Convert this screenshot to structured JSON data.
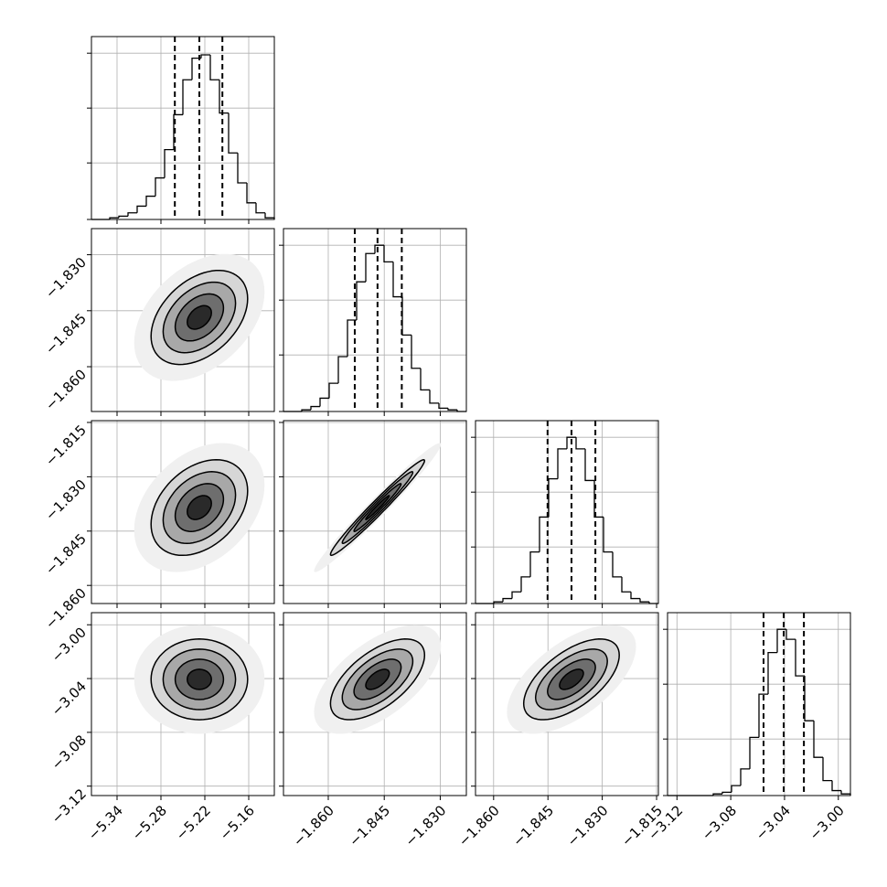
{
  "chart_data": {
    "type": "corner",
    "grid": true,
    "levels": [
      0.5,
      1,
      1.5,
      2
    ],
    "hist_ylim": [
      0,
      110
    ],
    "hist_yticks": [
      0,
      34,
      67,
      100
    ],
    "parameters": [
      {
        "lim": [
          -5.375,
          -5.125
        ],
        "ticks": [
          {
            "value": -5.34,
            "label": "−5.34"
          },
          {
            "value": -5.28,
            "label": "−5.28"
          },
          {
            "value": -5.22,
            "label": "−5.22"
          },
          {
            "value": -5.16,
            "label": "−5.16"
          }
        ],
        "bins": [
          -5.375,
          -5.3625,
          -5.35,
          -5.3375,
          -5.325,
          -5.3125,
          -5.3,
          -5.2875,
          -5.275,
          -5.2625,
          -5.25,
          -5.2375,
          -5.225,
          -5.2125,
          -5.2,
          -5.1875,
          -5.175,
          -5.1625,
          -5.15,
          -5.1375,
          -5.125
        ],
        "counts": [
          0,
          0,
          1,
          2,
          4,
          8,
          14,
          25,
          42,
          63,
          84,
          97,
          99,
          84,
          64,
          40,
          22,
          10,
          4,
          1
        ],
        "quantiles": [
          -5.261,
          -5.2275,
          -5.196
        ],
        "sd": 0.033
      },
      {
        "lim": [
          -1.872,
          -1.823
        ],
        "ticks": [
          {
            "value": -1.86,
            "label": "−1.860"
          },
          {
            "value": -1.845,
            "label": "−1.845"
          },
          {
            "value": -1.83,
            "label": "−1.830"
          }
        ],
        "bins": [
          -1.872,
          -1.86955,
          -1.8671,
          -1.86465,
          -1.8622,
          -1.85975,
          -1.8573,
          -1.85485,
          -1.8524,
          -1.84995,
          -1.8475,
          -1.84505,
          -1.8426,
          -1.84015,
          -1.8377,
          -1.83525,
          -1.8328,
          -1.83035,
          -1.8279,
          -1.82545,
          -1.823
        ],
        "counts": [
          0,
          0,
          1,
          3,
          8,
          17,
          33,
          55,
          78,
          95,
          100,
          90,
          69,
          46,
          26,
          13,
          5,
          2,
          1,
          0
        ],
        "quantiles": [
          -1.8529,
          -1.8468,
          -1.8403
        ],
        "sd": 0.0063
      },
      {
        "lim": [
          -1.865,
          -1.8145
        ],
        "ticks": [
          {
            "value": -1.86,
            "label": "−1.860"
          },
          {
            "value": -1.845,
            "label": "−1.845"
          },
          {
            "value": -1.83,
            "label": "−1.830"
          },
          {
            "value": -1.815,
            "label": "−1.815"
          }
        ],
        "bins": [
          -1.865,
          -1.862475,
          -1.85995,
          -1.857425,
          -1.8549,
          -1.852375,
          -1.84985,
          -1.847325,
          -1.8448,
          -1.842275,
          -1.83975,
          -1.837225,
          -1.8347,
          -1.832175,
          -1.82965,
          -1.827125,
          -1.8246,
          -1.822075,
          -1.81955,
          -1.817025,
          -1.8145
        ],
        "counts": [
          0,
          0,
          1,
          3,
          7,
          16,
          31,
          52,
          75,
          93,
          100,
          93,
          74,
          52,
          31,
          16,
          7,
          3,
          1,
          0
        ],
        "quantiles": [
          -1.8451,
          -1.8385,
          -1.8319
        ],
        "sd": 0.0066
      },
      {
        "lim": [
          -3.127,
          -2.991
        ],
        "ticks": [
          {
            "value": -3.12,
            "label": "−3.12"
          },
          {
            "value": -3.08,
            "label": "−3.08"
          },
          {
            "value": -3.04,
            "label": "−3.04"
          },
          {
            "value": -3.0,
            "label": "−3.00"
          }
        ],
        "bins": [
          -3.127,
          -3.1202,
          -3.1134,
          -3.1066,
          -3.0998,
          -3.093,
          -3.0862,
          -3.0794,
          -3.0726,
          -3.0658,
          -3.059,
          -3.0522,
          -3.0454,
          -3.0386,
          -3.0318,
          -3.025,
          -3.0182,
          -3.0114,
          -3.0046,
          -2.9978,
          -2.991
        ],
        "counts": [
          0,
          0,
          0,
          0,
          0,
          1,
          2,
          6,
          16,
          35,
          61,
          86,
          100,
          94,
          72,
          45,
          23,
          9,
          3,
          1
        ],
        "quantiles": [
          -3.0556,
          -3.0406,
          -3.0256
        ],
        "sd": 0.015
      }
    ],
    "correlations": [
      [
        0.4
      ],
      [
        0.35,
        0.98
      ],
      [
        0,
        0.6,
        0.6
      ]
    ]
  }
}
